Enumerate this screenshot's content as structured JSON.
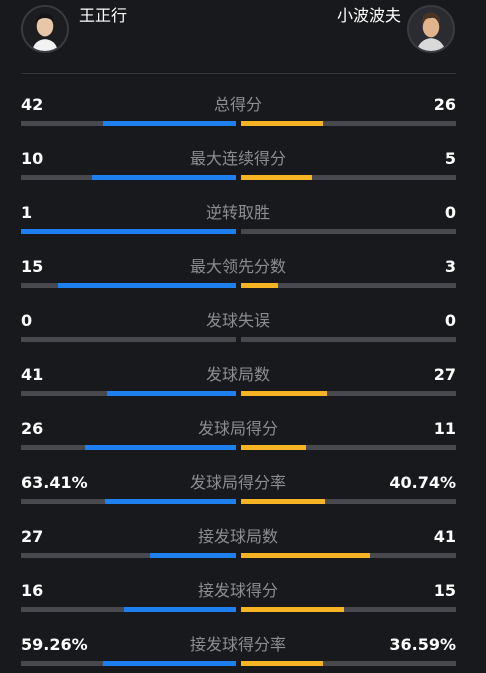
{
  "players": {
    "left": {
      "name": "王正行",
      "avatar_icon": "player-avatar-icon",
      "color": "#1e80f0"
    },
    "right": {
      "name": "小波波夫",
      "avatar_icon": "player-avatar-icon",
      "color": "#f6b324"
    }
  },
  "stats": [
    {
      "label": "总得分",
      "left": "42",
      "right": "26",
      "left_share": 0.62,
      "right_share": 0.38
    },
    {
      "label": "最大连续得分",
      "left": "10",
      "right": "5",
      "left_share": 0.67,
      "right_share": 0.33
    },
    {
      "label": "逆转取胜",
      "left": "1",
      "right": "0",
      "left_share": 1.0,
      "right_share": 0.0
    },
    {
      "label": "最大领先分数",
      "left": "15",
      "right": "3",
      "left_share": 0.83,
      "right_share": 0.17
    },
    {
      "label": "发球失误",
      "left": "0",
      "right": "0",
      "left_share": 0.0,
      "right_share": 0.0
    },
    {
      "label": "发球局数",
      "left": "41",
      "right": "27",
      "left_share": 0.6,
      "right_share": 0.4
    },
    {
      "label": "发球局得分",
      "left": "26",
      "right": "11",
      "left_share": 0.7,
      "right_share": 0.3
    },
    {
      "label": "发球局得分率",
      "left": "63.41%",
      "right": "40.74%",
      "left_share": 0.61,
      "right_share": 0.39
    },
    {
      "label": "接发球局数",
      "left": "27",
      "right": "41",
      "left_share": 0.4,
      "right_share": 0.6
    },
    {
      "label": "接发球得分",
      "left": "16",
      "right": "15",
      "left_share": 0.52,
      "right_share": 0.48
    },
    {
      "label": "接发球得分率",
      "left": "59.26%",
      "right": "36.59%",
      "left_share": 0.62,
      "right_share": 0.38
    }
  ]
}
